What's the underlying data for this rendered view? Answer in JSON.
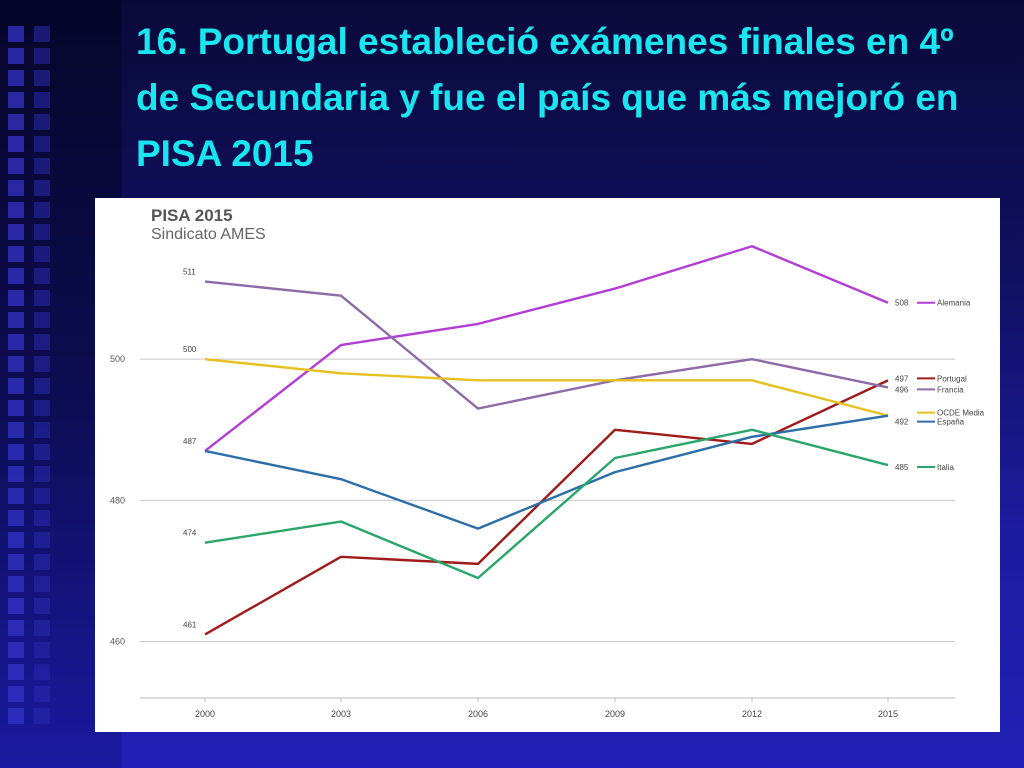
{
  "slide": {
    "title": "16. Portugal estableció exámenes finales en 4º de Secundaria y fue el país que más mejoró en PISA 2015"
  },
  "chart_data": {
    "type": "line",
    "title": "PISA 2015",
    "subtitle": "Sindicato AMES",
    "x": [
      "2000",
      "2003",
      "2006",
      "2009",
      "2012",
      "2015"
    ],
    "ylim": [
      452,
      520
    ],
    "yticks": [
      460,
      480,
      500
    ],
    "grid": true,
    "legend": "right",
    "series": [
      {
        "name": "Alemania",
        "color": "#b23ed6",
        "values": [
          487,
          502,
          505,
          510,
          516,
          508
        ],
        "start_label": "",
        "end_label": "508"
      },
      {
        "name": "Portugal",
        "color": "#a01a1a",
        "values": [
          461,
          472,
          471,
          490,
          488,
          497
        ],
        "start_label": "461",
        "end_label": "497"
      },
      {
        "name": "Francia",
        "color": "#8e6aa8",
        "values": [
          511,
          509,
          493,
          497,
          500,
          496
        ],
        "start_label": "511",
        "end_label": "496"
      },
      {
        "name": "OCDE Media",
        "color": "#e6c01e",
        "values": [
          500,
          498,
          497,
          497,
          497,
          492
        ],
        "start_label": "500",
        "end_label": ""
      },
      {
        "name": "España",
        "color": "#2b6ea8",
        "values": [
          487,
          483,
          476,
          484,
          489,
          492
        ],
        "start_label": "487",
        "end_label": "492"
      },
      {
        "name": "Italia",
        "color": "#2aa66a",
        "values": [
          474,
          477,
          469,
          486,
          490,
          485
        ],
        "start_label": "474",
        "end_label": "485"
      }
    ]
  }
}
